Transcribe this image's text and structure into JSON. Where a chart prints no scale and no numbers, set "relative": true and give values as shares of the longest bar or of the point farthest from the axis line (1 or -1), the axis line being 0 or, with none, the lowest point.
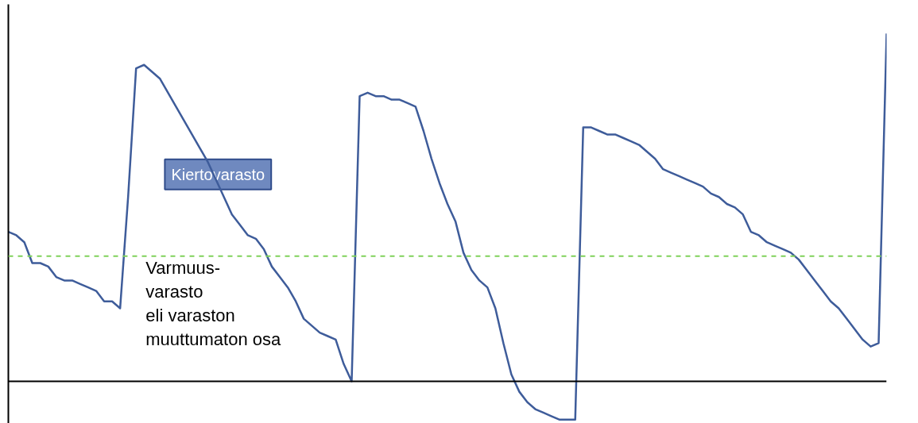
{
  "chart_data": {
    "type": "line",
    "relative": true,
    "categories": [
      null,
      null,
      null,
      null,
      null,
      null,
      null,
      null,
      null,
      null,
      null,
      null,
      null,
      null,
      null,
      null,
      null,
      null,
      null,
      null,
      null,
      null,
      null,
      null,
      null,
      null,
      null,
      null,
      null,
      null,
      null,
      null,
      null,
      null,
      null,
      null,
      null,
      null,
      null,
      null,
      null,
      null,
      null,
      null,
      null,
      null,
      null,
      null,
      null,
      null,
      null,
      null,
      null,
      null,
      null,
      null,
      null,
      null,
      null,
      null,
      null,
      null,
      null,
      null,
      null,
      null,
      null,
      null,
      null,
      null,
      null,
      null,
      null,
      null,
      null,
      null,
      null,
      null,
      null,
      null,
      null,
      null,
      null,
      null,
      null,
      null,
      null,
      null,
      null,
      null,
      null,
      null,
      null,
      null,
      null,
      null,
      null,
      null,
      null,
      null,
      null,
      null,
      null,
      null,
      null,
      null,
      null,
      null,
      null,
      null,
      null
    ],
    "series": [
      {
        "color": "#3e5c9a",
        "values": [
          0.43,
          0.42,
          0.4,
          0.34,
          0.34,
          0.33,
          0.3,
          0.29,
          0.29,
          0.28,
          0.27,
          0.26,
          0.23,
          0.23,
          0.21,
          0.53,
          0.9,
          0.91,
          0.89,
          0.87,
          0.83,
          0.79,
          0.75,
          0.71,
          0.67,
          0.63,
          0.58,
          0.53,
          0.48,
          0.45,
          0.42,
          0.41,
          0.38,
          0.33,
          0.3,
          0.27,
          0.23,
          0.18,
          0.16,
          0.14,
          0.13,
          0.12,
          0.05,
          0,
          0.82,
          0.83,
          0.82,
          0.82,
          0.81,
          0.81,
          0.8,
          0.79,
          0.72,
          0.64,
          0.57,
          0.51,
          0.46,
          0.37,
          0.32,
          0.29,
          0.27,
          0.21,
          0.11,
          0.02,
          -0.03,
          -0.06,
          -0.08,
          -0.09,
          -0.1,
          -0.11,
          -0.11,
          -0.11,
          0.73,
          0.73,
          0.72,
          0.71,
          0.71,
          0.7,
          0.69,
          0.68,
          0.66,
          0.64,
          0.61,
          0.6,
          0.59,
          0.58,
          0.57,
          0.56,
          0.54,
          0.53,
          0.51,
          0.5,
          0.48,
          0.43,
          0.42,
          0.4,
          0.39,
          0.38,
          0.37,
          0.35,
          0.32,
          0.29,
          0.26,
          0.23,
          0.21,
          0.18,
          0.15,
          0.12,
          0.1,
          0.11,
          1
        ]
      }
    ],
    "ref_lines": [
      {
        "axis": "y",
        "value": 0.36,
        "color": "#7fd15a",
        "line_style": "dashed"
      }
    ],
    "annotations": [
      "Kiertovarasto",
      "Varmuus-\nvarasto\neli varaston\nmuuttumaton osa"
    ],
    "line_style": "solid",
    "marker": "none",
    "grid": false,
    "legend": false
  }
}
